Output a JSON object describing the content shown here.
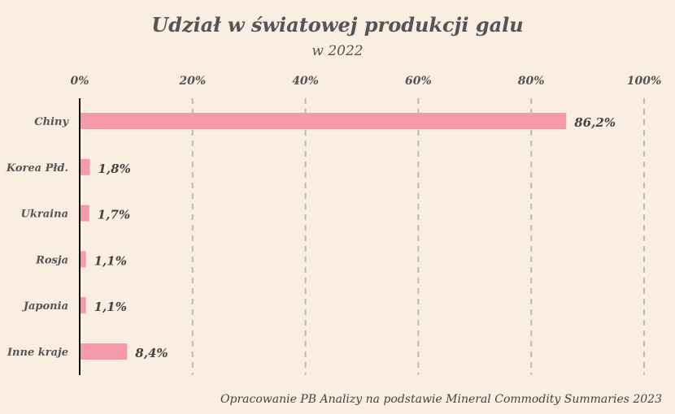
{
  "chart_data": {
    "type": "bar",
    "orientation": "horizontal",
    "title": "Udział w światowej produkcji galu",
    "subtitle": "w 2022",
    "categories": [
      "Chiny",
      "Korea Płd.",
      "Ukraina",
      "Rosja",
      "Japonia",
      "Inne kraje"
    ],
    "values": [
      86.2,
      1.8,
      1.7,
      1.1,
      1.1,
      8.4
    ],
    "value_labels": [
      "86,2%",
      "1,8%",
      "1,7%",
      "1,1%",
      "1,1%",
      "8,4%"
    ],
    "xlim": [
      0,
      100
    ],
    "xticks": [
      0,
      20,
      40,
      60,
      80,
      100
    ],
    "xtick_labels": [
      "0%",
      "20%",
      "40%",
      "60%",
      "80%",
      "100%"
    ],
    "xaxis_position": "top",
    "grid": "vertical dashed",
    "bar_color": "#f59aa9",
    "source": "Opracowanie PB Analizy na podstawie Mineral Commodity Summaries 2023"
  }
}
